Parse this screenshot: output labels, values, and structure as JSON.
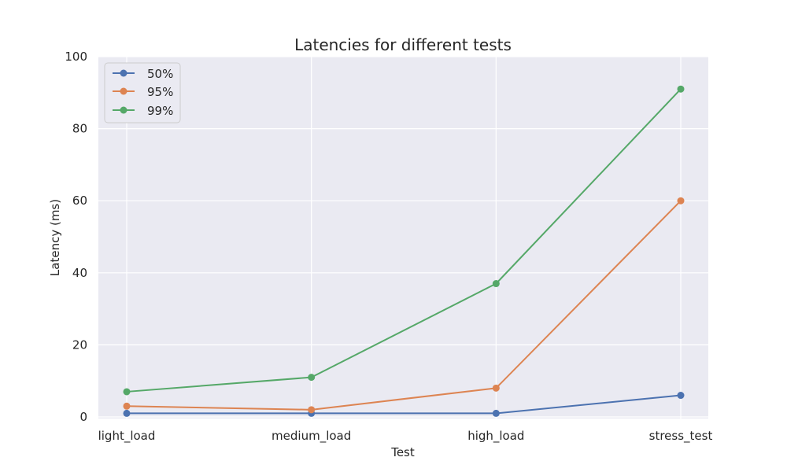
{
  "chart_data": {
    "type": "line",
    "title": "Latencies for different tests",
    "xlabel": "Test",
    "ylabel": "Latency (ms)",
    "categories": [
      "light_load",
      "medium_load",
      "high_load",
      "stress_test"
    ],
    "ylim": [
      0,
      100
    ],
    "yticks": [
      0,
      20,
      40,
      60,
      80,
      100
    ],
    "grid": true,
    "legend_position": "top-left",
    "series": [
      {
        "name": "50%",
        "color": "#4c72b0",
        "values": [
          1,
          1,
          1,
          6
        ]
      },
      {
        "name": "95%",
        "color": "#dd8452",
        "values": [
          3,
          2,
          8,
          60
        ]
      },
      {
        "name": "99%",
        "color": "#55a868",
        "values": [
          7,
          11,
          37,
          91
        ]
      }
    ]
  }
}
